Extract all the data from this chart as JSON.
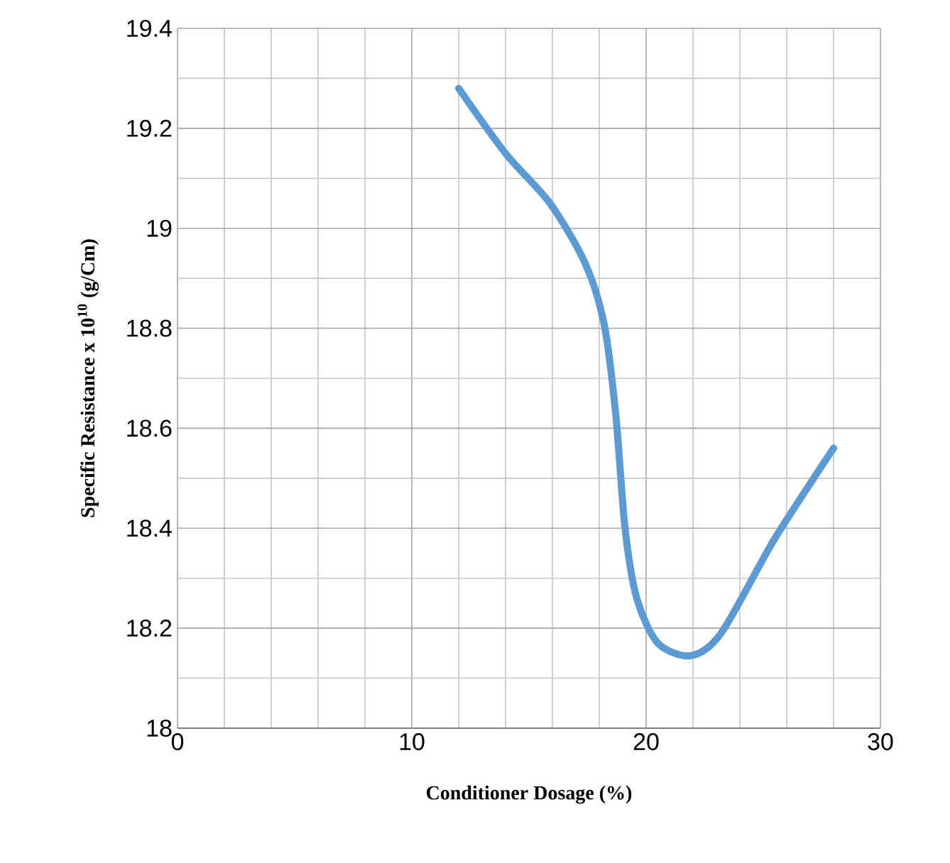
{
  "chart_data": {
    "type": "line",
    "xlabel": "Conditioner Dosage (%)",
    "ylabel": "Specific Resistance  x 10$^{10}$ (g/Cm)",
    "x": [
      12,
      14,
      15.9,
      17.4,
      18.2,
      18.7,
      19.1,
      19.6,
      20.5,
      21.9,
      23.2,
      25.5,
      28
    ],
    "series": [
      {
        "color": "#5b9bd5",
        "values": [
          19.28,
          19.15,
          19.05,
          18.93,
          18.81,
          18.63,
          18.4,
          18.26,
          18.17,
          18.145,
          18.19,
          18.38,
          18.56
        ]
      }
    ],
    "xlim": [
      0,
      30
    ],
    "ylim": [
      18,
      19.4
    ],
    "xticks": [
      0,
      10,
      20,
      30
    ],
    "yticks": [
      18,
      18.2,
      18.4,
      18.6,
      18.8,
      19,
      19.2,
      19.4
    ],
    "grid": true,
    "marker": "none",
    "line_style": "solid"
  }
}
